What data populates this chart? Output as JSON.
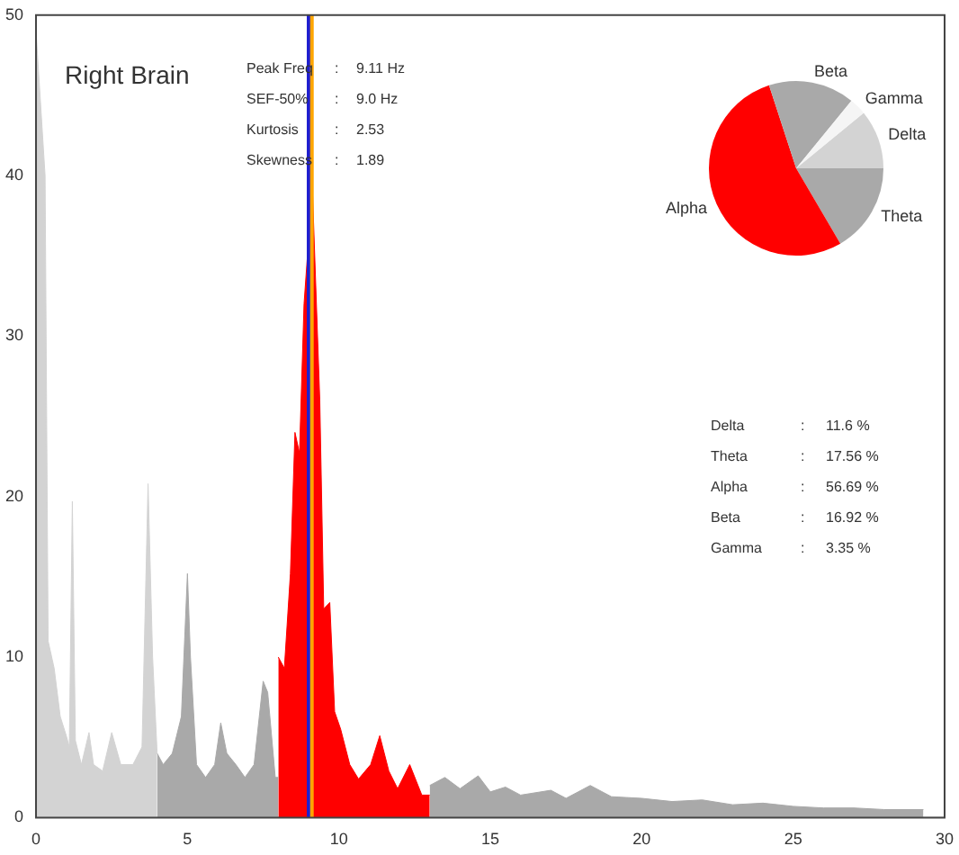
{
  "chart_data": [
    {
      "type": "area",
      "title": "Right Brain",
      "xlim": [
        0,
        30
      ],
      "ylim": [
        0,
        50
      ],
      "xticks": [
        0,
        5,
        10,
        15,
        20,
        25,
        30
      ],
      "yticks": [
        0,
        10,
        20,
        30,
        40,
        50
      ],
      "series": [
        {
          "color": "#d3d3d3",
          "x": [
            0,
            0.3,
            0.4,
            0.6,
            0.8,
            1.0,
            1.1,
            1.2,
            1.3,
            1.5,
            1.75,
            1.9,
            2.2,
            2.5,
            2.8,
            3.2,
            3.5,
            3.7,
            3.85,
            4.0
          ],
          "values": [
            49,
            40,
            11,
            9.3,
            6.3,
            5.1,
            4.4,
            19.7,
            4.8,
            3.3,
            5.3,
            3.3,
            2.9,
            5.3,
            3.3,
            3.3,
            4.4,
            20.8,
            10,
            4
          ]
        },
        {
          "color": "#a9a9a9",
          "x": [
            4.0,
            4.2,
            4.5,
            4.8,
            5.0,
            5.1,
            5.3,
            5.6,
            5.9,
            6.1,
            6.3,
            6.6,
            6.9,
            7.2,
            7.5,
            7.65,
            7.9,
            8.0
          ],
          "values": [
            4,
            3.3,
            4,
            6.3,
            15.2,
            10,
            3.3,
            2.5,
            3.3,
            5.9,
            4,
            3.3,
            2.5,
            3.3,
            8.5,
            7.8,
            2.5,
            2.5
          ]
        },
        {
          "color": "#ff0000",
          "x": [
            8.0,
            8.2,
            8.4,
            8.55,
            8.7,
            8.85,
            9.0,
            9.11,
            9.37,
            9.5,
            9.7,
            9.86,
            10.06,
            10.36,
            10.65,
            11.05,
            11.35,
            11.65,
            11.94,
            12.34,
            12.74,
            13.0
          ],
          "values": [
            10,
            9.3,
            15.2,
            24,
            22.7,
            32,
            36,
            40,
            26,
            13,
            13.4,
            6.6,
            5.5,
            3.3,
            2.4,
            3.3,
            5.1,
            2.9,
            1.8,
            3.3,
            1.4,
            1.4
          ]
        },
        {
          "color": "#a9a9a9",
          "x": [
            13.0,
            13.5,
            14.0,
            14.6,
            15.0,
            15.5,
            16.0,
            17.0,
            17.5,
            18.3,
            19.0,
            20.0,
            21.0,
            22.0,
            23.0,
            24.0,
            25.0,
            26.0,
            27.0,
            28.0,
            29.3
          ],
          "values": [
            2,
            2.5,
            1.8,
            2.6,
            1.6,
            1.9,
            1.4,
            1.7,
            1.2,
            2.0,
            1.3,
            1.2,
            1.0,
            1.1,
            0.8,
            0.9,
            0.7,
            0.6,
            0.6,
            0.5,
            0.5
          ]
        }
      ],
      "ref_lines": [
        {
          "axis": "x",
          "value": 9.0,
          "color": "#1f1fd0"
        },
        {
          "axis": "x",
          "value": 9.11,
          "color": "#ffa500"
        }
      ],
      "annotations": [
        "Peak Freq : 9.11 Hz",
        "SEF-50% : 9.0 Hz",
        "Kurtosis : 2.53",
        "Skewness : 1.89"
      ]
    },
    {
      "type": "pie",
      "categories": [
        "Delta",
        "Theta",
        "Alpha",
        "Beta",
        "Gamma"
      ],
      "values": [
        10.93,
        16.55,
        53.42,
        15.94,
        3.16
      ],
      "colors": [
        "#d3d3d3",
        "#a9a9a9",
        "#ff0000",
        "#a9a9a9",
        "#f5f5f5"
      ],
      "annotations": [
        "Delta : 11.6 %",
        "Theta : 17.56 %",
        "Alpha : 56.69 %",
        "Beta : 16.92 %",
        "Gamma : 3.35 %"
      ]
    }
  ]
}
